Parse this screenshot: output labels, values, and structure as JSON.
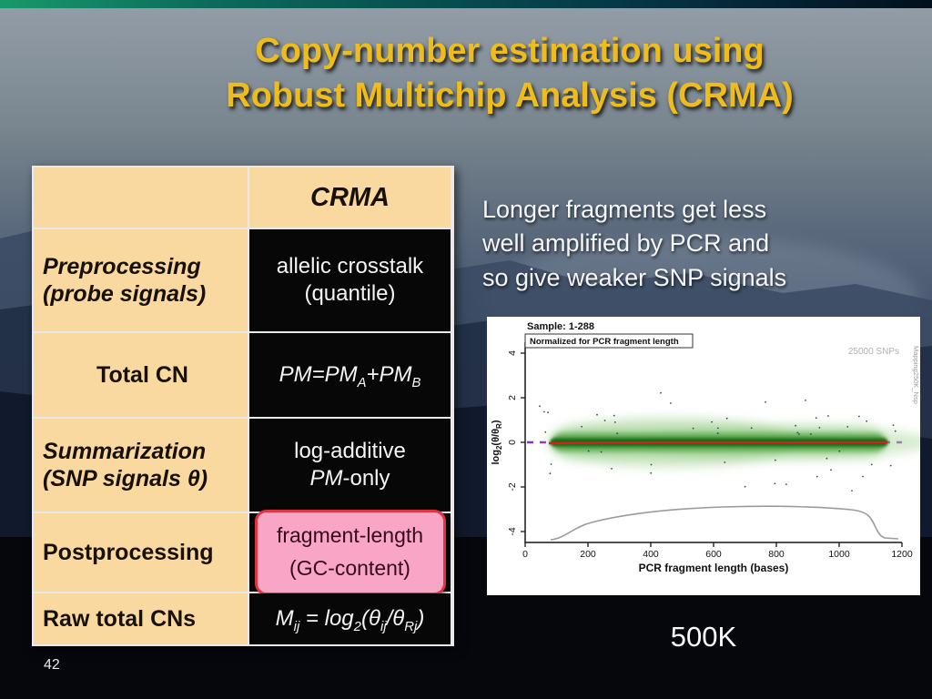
{
  "title": {
    "line1": "Copy-number estimation using",
    "line2": "Robust Multichip Analysis (CRMA)"
  },
  "note": {
    "line1": "Longer fragments get less",
    "line2": "well amplified by PCR and",
    "line3": "so give weaker SNP signals"
  },
  "table": {
    "header": "CRMA",
    "preprocessing": {
      "label1": "Preprocessing",
      "label2": "(probe signals)",
      "value1": "allelic crosstalk",
      "value2": "(quantile)"
    },
    "total_cn": {
      "label": "Total CN",
      "v_p1": "PM=PM",
      "v_s1": "A",
      "v_p2": "+PM",
      "v_s2": "B"
    },
    "summarization": {
      "label1": "Summarization",
      "label2_pre": "(SNP signals ",
      "label2_theta": "θ",
      "label2_post": ")",
      "value1": "log-additive",
      "value2_pm": "PM",
      "value2_rest": "-only"
    },
    "postprocessing": {
      "label": "Postprocessing",
      "value1": "fragment-length",
      "value2": "(GC-content)"
    },
    "raw_total": {
      "label": "Raw total CNs",
      "p1": "M",
      "s1": "ij",
      "p2": " = log",
      "s2": "2",
      "p3": "(",
      "t1": "θ",
      "s3": "ij",
      "p4": "/",
      "t2": "θ",
      "s4": "Rj",
      "p5": ")"
    }
  },
  "caption": "500K",
  "slide_number": "42",
  "chart_data": {
    "type": "scatter",
    "title": "Sample: 1-288",
    "subtitle": "Normalized for PCR fragment length",
    "snp_count_label": "25000 SNPs",
    "side_label": "Mapping250K_Nsp",
    "xlabel": "PCR fragment length (bases)",
    "ylabel_parts": {
      "p1": "log",
      "s1": "2",
      "p2": "(θ/θ",
      "s2": "R",
      "p3": ")"
    },
    "xlim": [
      0,
      1200
    ],
    "ylim": [
      -4.5,
      4.5
    ],
    "x_ticks": [
      0,
      200,
      400,
      600,
      800,
      1000,
      1200
    ],
    "y_ticks": [
      4,
      2,
      0,
      -2,
      -4
    ],
    "series": [
      {
        "name": "snp-density-cloud",
        "color": "#2a7d22",
        "description": "green density cloud of SNP log2 ratios centered at 0, fragment lengths ~100-1150"
      },
      {
        "name": "fitted-line",
        "color": "#d42020",
        "style": "solid",
        "y": 0
      },
      {
        "name": "target-line",
        "color": "#8a2fbe",
        "style": "dashed",
        "y": 0
      },
      {
        "name": "fragment-length-distribution",
        "color": "#9b9b9b",
        "description": "gray curve near bottom, plateau ~-3.2 between 200 and 1050, drops at ends"
      }
    ]
  },
  "colors": {
    "title": "#eebd1d",
    "table_cream": "#fad9a1",
    "table_dark": "#070707",
    "highlight_pink": "#f9a6c6",
    "highlight_border": "#e2343f"
  }
}
